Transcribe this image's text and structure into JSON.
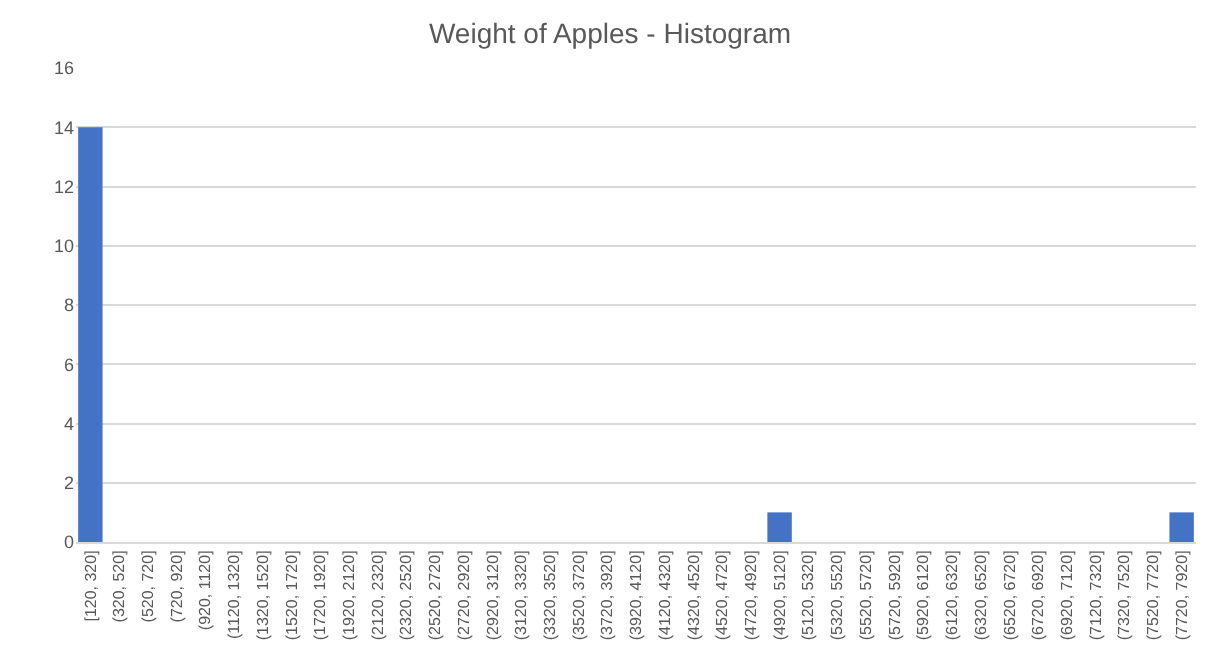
{
  "chart_data": {
    "type": "bar",
    "title": "Weight of Apples - Histogram",
    "categories": [
      "[120, 320]",
      "(320, 520]",
      "(520, 720]",
      "(720, 920]",
      "(920, 1120]",
      "(1120, 1320]",
      "(1320, 1520]",
      "(1520, 1720]",
      "(1720, 1920]",
      "(1920, 2120]",
      "(2120, 2320]",
      "(2320, 2520]",
      "(2520, 2720]",
      "(2720, 2920]",
      "(2920, 3120]",
      "(3120, 3320]",
      "(3320, 3520]",
      "(3520, 3720]",
      "(3720, 3920]",
      "(3920, 4120]",
      "(4120, 4320]",
      "(4320, 4520]",
      "(4520, 4720]",
      "(4720, 4920]",
      "(4920, 5120]",
      "(5120, 5320]",
      "(5320, 5520]",
      "(5520, 5720]",
      "(5720, 5920]",
      "(5920, 6120]",
      "(6120, 6320]",
      "(6320, 6520]",
      "(6520, 6720]",
      "(6720, 6920]",
      "(6920, 7120]",
      "(7120, 7320]",
      "(7320, 7520]",
      "(7520, 7720]",
      "(7720, 7920]"
    ],
    "values": [
      14,
      0,
      0,
      0,
      0,
      0,
      0,
      0,
      0,
      0,
      0,
      0,
      0,
      0,
      0,
      0,
      0,
      0,
      0,
      0,
      0,
      0,
      0,
      0,
      1,
      0,
      0,
      0,
      0,
      0,
      0,
      0,
      0,
      0,
      0,
      0,
      0,
      0,
      1
    ],
    "color": "#4472c4",
    "ylim": [
      0,
      16
    ],
    "yticks": [
      0,
      2,
      4,
      6,
      8,
      10,
      12,
      14,
      16
    ],
    "grid": "y"
  }
}
